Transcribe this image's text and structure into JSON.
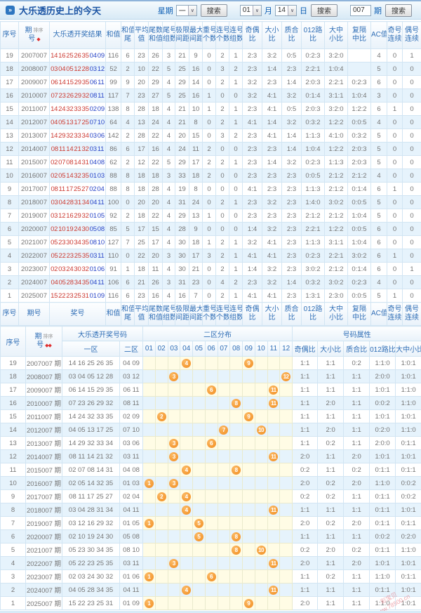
{
  "icons": {
    "bullet": "»",
    "caret": "∨",
    "sort_single": "◆",
    "sort_double": "◆◆"
  },
  "toolbar": {
    "title": "大乐透历史上的今天",
    "week_label": "星期",
    "week_value": "一",
    "search_label": "搜索",
    "month_value": "01",
    "month_label": "月",
    "day_value": "14",
    "day_label": "日",
    "issue_value": "007",
    "issue_label": "期"
  },
  "watermark": {
    "line1": "彩宝贝",
    "line2": "www.78500.cn"
  },
  "stats_table": {
    "sort_label": "排序",
    "columns": [
      {
        "l1": "序号",
        "l2": ""
      },
      {
        "l1": "期",
        "l2": "号",
        "sort": true
      },
      {
        "l1": "大乐透开奖结果",
        "l2": ""
      },
      {
        "l1": "和值",
        "l2": ""
      },
      {
        "l1": "和值",
        "l2": "尾"
      },
      {
        "l1": "平均",
        "l2": "值"
      },
      {
        "l1": "尾数",
        "l2": "和值"
      },
      {
        "l1": "尾号",
        "l2": "组数"
      },
      {
        "l1": "极限",
        "l2": "间距"
      },
      {
        "l1": "最大",
        "l2": "间距"
      },
      {
        "l1": "重号",
        "l2": "个数"
      },
      {
        "l1": "连号",
        "l2": "个数"
      },
      {
        "l1": "连号",
        "l2": "组数"
      },
      {
        "l1": "奇偶",
        "l2": "比"
      },
      {
        "l1": "大小",
        "l2": "比"
      },
      {
        "l1": "质合",
        "l2": "比"
      },
      {
        "l1": "012路",
        "l2": "比"
      },
      {
        "l1": "大中",
        "l2": "小比"
      },
      {
        "l1": "复隔",
        "l2": "中比"
      },
      {
        "l1": "AC值",
        "l2": ""
      },
      {
        "l1": "奇号",
        "l2": "连续"
      },
      {
        "l1": "偶号",
        "l2": "连续"
      }
    ],
    "footer_columns": [
      {
        "l1": "序号",
        "l2": ""
      },
      {
        "l1": "期号",
        "l2": ""
      },
      {
        "l1": "奖号",
        "l2": ""
      },
      {
        "l1": "和值",
        "l2": ""
      },
      {
        "l1": "和值",
        "l2": "尾"
      },
      {
        "l1": "平均",
        "l2": "值"
      },
      {
        "l1": "尾数",
        "l2": "和值"
      },
      {
        "l1": "尾号",
        "l2": "组数"
      },
      {
        "l1": "极限",
        "l2": "间距"
      },
      {
        "l1": "最大",
        "l2": "间距"
      },
      {
        "l1": "重号",
        "l2": "个数"
      },
      {
        "l1": "连号",
        "l2": "个数"
      },
      {
        "l1": "连号",
        "l2": "组数"
      },
      {
        "l1": "奇偶",
        "l2": "比"
      },
      {
        "l1": "大小",
        "l2": "比"
      },
      {
        "l1": "质合",
        "l2": "比"
      },
      {
        "l1": "012路",
        "l2": "比"
      },
      {
        "l1": "大中",
        "l2": "小比"
      },
      {
        "l1": "复隔",
        "l2": "中比"
      },
      {
        "l1": "AC值",
        "l2": ""
      },
      {
        "l1": "奇号",
        "l2": "连续"
      },
      {
        "l1": "偶号",
        "l2": "连续"
      }
    ],
    "rows": [
      {
        "seq": "19",
        "issue": "2007007",
        "front": "14 16 25 26 35",
        "back": "04 09",
        "stats": [
          "116",
          "6",
          "23",
          "26",
          "3",
          "21",
          "9",
          "0",
          "2",
          "1",
          "2:3",
          "3:2",
          "0:5",
          "0:2:3",
          "3:2:0",
          "",
          "4",
          "0",
          "1"
        ]
      },
      {
        "seq": "18",
        "issue": "2008007",
        "front": "03 04 05 12 28",
        "back": "03 12",
        "stats": [
          "52",
          "2",
          "10",
          "22",
          "5",
          "25",
          "16",
          "0",
          "3",
          "2",
          "2:3",
          "1:4",
          "2:3",
          "2:2:1",
          "1:0:4",
          "",
          "5",
          "0",
          "0"
        ]
      },
      {
        "seq": "17",
        "issue": "2009007",
        "front": "06 14 15 29 35",
        "back": "06 11",
        "stats": [
          "99",
          "9",
          "20",
          "29",
          "4",
          "29",
          "14",
          "0",
          "2",
          "1",
          "3:2",
          "2:3",
          "1:4",
          "2:0:3",
          "2:2:1",
          "0:2:3",
          "6",
          "0",
          "0"
        ]
      },
      {
        "seq": "16",
        "issue": "2010007",
        "front": "07 23 26 29 32",
        "back": "08 11",
        "stats": [
          "117",
          "7",
          "23",
          "27",
          "5",
          "25",
          "16",
          "1",
          "0",
          "0",
          "3:2",
          "4:1",
          "3:2",
          "0:1:4",
          "3:1:1",
          "1:0:4",
          "3",
          "0",
          "0"
        ]
      },
      {
        "seq": "15",
        "issue": "2011007",
        "front": "14 24 32 33 35",
        "back": "02 09",
        "stats": [
          "138",
          "8",
          "28",
          "18",
          "4",
          "21",
          "10",
          "1",
          "2",
          "1",
          "2:3",
          "4:1",
          "0:5",
          "2:0:3",
          "3:2:0",
          "1:2:2",
          "6",
          "1",
          "0"
        ]
      },
      {
        "seq": "14",
        "issue": "2012007",
        "front": "04 05 13 17 25",
        "back": "07 10",
        "stats": [
          "64",
          "4",
          "13",
          "24",
          "4",
          "21",
          "8",
          "0",
          "2",
          "1",
          "4:1",
          "1:4",
          "3:2",
          "0:3:2",
          "1:2:2",
          "0:0:5",
          "4",
          "0",
          "0"
        ]
      },
      {
        "seq": "13",
        "issue": "2013007",
        "front": "14 29 32 33 34",
        "back": "03 06",
        "stats": [
          "142",
          "2",
          "28",
          "22",
          "4",
          "20",
          "15",
          "0",
          "3",
          "2",
          "2:3",
          "4:1",
          "1:4",
          "1:1:3",
          "4:1:0",
          "0:3:2",
          "5",
          "0",
          "0"
        ]
      },
      {
        "seq": "12",
        "issue": "2014007",
        "front": "08 11 14 21 32",
        "back": "03 11",
        "stats": [
          "86",
          "6",
          "17",
          "16",
          "4",
          "24",
          "11",
          "2",
          "0",
          "0",
          "2:3",
          "2:3",
          "1:4",
          "1:0:4",
          "1:2:2",
          "2:0:3",
          "5",
          "0",
          "0"
        ]
      },
      {
        "seq": "11",
        "issue": "2015007",
        "front": "02 07 08 14 31",
        "back": "04 08",
        "stats": [
          "62",
          "2",
          "12",
          "22",
          "5",
          "29",
          "17",
          "2",
          "2",
          "1",
          "2:3",
          "1:4",
          "3:2",
          "0:2:3",
          "1:1:3",
          "2:0:3",
          "5",
          "0",
          "0"
        ]
      },
      {
        "seq": "10",
        "issue": "2016007",
        "front": "02 05 14 32 35",
        "back": "01 03",
        "stats": [
          "88",
          "8",
          "18",
          "18",
          "3",
          "33",
          "18",
          "2",
          "0",
          "0",
          "2:3",
          "2:3",
          "2:3",
          "0:0:5",
          "2:1:2",
          "2:1:2",
          "4",
          "0",
          "0"
        ]
      },
      {
        "seq": "9",
        "issue": "2017007",
        "front": "08 11 17 25 27",
        "back": "02 04",
        "stats": [
          "88",
          "8",
          "18",
          "28",
          "4",
          "19",
          "8",
          "0",
          "0",
          "0",
          "4:1",
          "2:3",
          "2:3",
          "1:1:3",
          "2:1:2",
          "0:1:4",
          "6",
          "1",
          "0"
        ]
      },
      {
        "seq": "8",
        "issue": "2018007",
        "front": "03 04 28 31 34",
        "back": "04 11",
        "stats": [
          "100",
          "0",
          "20",
          "20",
          "4",
          "31",
          "24",
          "0",
          "2",
          "1",
          "2:3",
          "3:2",
          "2:3",
          "1:4:0",
          "3:0:2",
          "0:0:5",
          "5",
          "0",
          "0"
        ]
      },
      {
        "seq": "7",
        "issue": "2019007",
        "front": "03 12 16 29 32",
        "back": "01 05",
        "stats": [
          "92",
          "2",
          "18",
          "22",
          "4",
          "29",
          "13",
          "1",
          "0",
          "0",
          "2:3",
          "2:3",
          "2:3",
          "2:1:2",
          "2:1:2",
          "1:0:4",
          "5",
          "0",
          "0"
        ]
      },
      {
        "seq": "6",
        "issue": "2020007",
        "front": "02 10 19 24 30",
        "back": "05 08",
        "stats": [
          "85",
          "5",
          "17",
          "15",
          "4",
          "28",
          "9",
          "0",
          "0",
          "0",
          "1:4",
          "3:2",
          "2:3",
          "2:2:1",
          "1:2:2",
          "0:0:5",
          "6",
          "0",
          "0"
        ]
      },
      {
        "seq": "5",
        "issue": "2021007",
        "front": "05 23 30 34 35",
        "back": "08 10",
        "stats": [
          "127",
          "7",
          "25",
          "17",
          "4",
          "30",
          "18",
          "1",
          "2",
          "1",
          "3:2",
          "4:1",
          "2:3",
          "1:1:3",
          "3:1:1",
          "1:0:4",
          "6",
          "0",
          "0"
        ]
      },
      {
        "seq": "4",
        "issue": "2022007",
        "front": "05 22 23 25 35",
        "back": "03 11",
        "stats": [
          "110",
          "0",
          "22",
          "20",
          "3",
          "30",
          "17",
          "3",
          "2",
          "1",
          "4:1",
          "4:1",
          "2:3",
          "0:2:3",
          "2:2:1",
          "3:0:2",
          "6",
          "1",
          "0"
        ]
      },
      {
        "seq": "3",
        "issue": "2023007",
        "front": "02 03 24 30 32",
        "back": "01 06",
        "stats": [
          "91",
          "1",
          "18",
          "11",
          "4",
          "30",
          "21",
          "0",
          "2",
          "1",
          "1:4",
          "3:2",
          "2:3",
          "3:0:2",
          "2:1:2",
          "0:1:4",
          "6",
          "0",
          "1"
        ]
      },
      {
        "seq": "2",
        "issue": "2024007",
        "front": "04 05 28 34 35",
        "back": "04 11",
        "stats": [
          "106",
          "6",
          "21",
          "26",
          "3",
          "31",
          "23",
          "0",
          "4",
          "2",
          "2:3",
          "3:2",
          "1:4",
          "0:3:2",
          "3:0:2",
          "0:2:3",
          "4",
          "0",
          "0"
        ]
      },
      {
        "seq": "1",
        "issue": "2025007",
        "front": "15 22 23 25 31",
        "back": "01 09",
        "stats": [
          "116",
          "6",
          "23",
          "16",
          "4",
          "16",
          "7",
          "0",
          "2",
          "1",
          "4:1",
          "4:1",
          "2:3",
          "1:3:1",
          "2:3:0",
          "0:0:5",
          "5",
          "1",
          "0"
        ]
      }
    ]
  },
  "zone_table": {
    "sort_label": "排序",
    "group_headers": {
      "seq": "序号",
      "issue_l1": "期",
      "issue_l2": "号",
      "numbers": "大乐透开奖号码",
      "zone2_dist": "二区分布",
      "attrs": "号码属性"
    },
    "sub_headers": {
      "zone1": "一区",
      "zone2": "二区",
      "cells": [
        "01",
        "02",
        "03",
        "04",
        "05",
        "06",
        "07",
        "08",
        "09",
        "10",
        "11",
        "12"
      ],
      "attrs": [
        "奇偶比",
        "大小比",
        "质合比",
        "012路比",
        "大中小比"
      ]
    },
    "rows": [
      {
        "seq": "19",
        "issue": "2007007 期",
        "front": "14 16 25 26 35",
        "back": "04 09",
        "balls": [
          4,
          9
        ],
        "attrs": [
          "1:1",
          "1:1",
          "0:2",
          "1:1:0",
          "1:0:1"
        ]
      },
      {
        "seq": "18",
        "issue": "2008007 期",
        "front": "03 04 05 12 28",
        "back": "03 12",
        "balls": [
          3,
          12
        ],
        "attrs": [
          "1:1",
          "1:1",
          "1:1",
          "2:0:0",
          "1:0:1"
        ]
      },
      {
        "seq": "17",
        "issue": "2009007 期",
        "front": "06 14 15 29 35",
        "back": "06 11",
        "balls": [
          6,
          11
        ],
        "attrs": [
          "1:1",
          "1:1",
          "1:1",
          "1:0:1",
          "1:1:0"
        ]
      },
      {
        "seq": "16",
        "issue": "2010007 期",
        "front": "07 23 26 29 32",
        "back": "08 11",
        "balls": [
          8,
          11
        ],
        "attrs": [
          "1:1",
          "2:0",
          "1:1",
          "0:0:2",
          "1:1:0"
        ]
      },
      {
        "seq": "15",
        "issue": "2011007 期",
        "front": "14 24 32 33 35",
        "back": "02 09",
        "balls": [
          2,
          9
        ],
        "attrs": [
          "1:1",
          "1:1",
          "1:1",
          "1:0:1",
          "1:0:1"
        ]
      },
      {
        "seq": "14",
        "issue": "2012007 期",
        "front": "04 05 13 17 25",
        "back": "07 10",
        "balls": [
          7,
          10
        ],
        "attrs": [
          "1:1",
          "2:0",
          "1:1",
          "0:2:0",
          "1:1:0"
        ]
      },
      {
        "seq": "13",
        "issue": "2013007 期",
        "front": "14 29 32 33 34",
        "back": "03 06",
        "balls": [
          3,
          6
        ],
        "attrs": [
          "1:1",
          "0:2",
          "1:1",
          "2:0:0",
          "0:1:1"
        ]
      },
      {
        "seq": "12",
        "issue": "2014007 期",
        "front": "08 11 14 21 32",
        "back": "03 11",
        "balls": [
          3,
          11
        ],
        "attrs": [
          "2:0",
          "1:1",
          "2:0",
          "1:0:1",
          "1:0:1"
        ]
      },
      {
        "seq": "11",
        "issue": "2015007 期",
        "front": "02 07 08 14 31",
        "back": "04 08",
        "balls": [
          4,
          8
        ],
        "attrs": [
          "0:2",
          "1:1",
          "0:2",
          "0:1:1",
          "0:1:1"
        ]
      },
      {
        "seq": "10",
        "issue": "2016007 期",
        "front": "02 05 14 32 35",
        "back": "01 03",
        "balls": [
          1,
          3
        ],
        "attrs": [
          "2:0",
          "0:2",
          "2:0",
          "1:1:0",
          "0:0:2"
        ]
      },
      {
        "seq": "9",
        "issue": "2017007 期",
        "front": "08 11 17 25 27",
        "back": "02 04",
        "balls": [
          2,
          4
        ],
        "attrs": [
          "0:2",
          "0:2",
          "1:1",
          "0:1:1",
          "0:0:2"
        ]
      },
      {
        "seq": "8",
        "issue": "2018007 期",
        "front": "03 04 28 31 34",
        "back": "04 11",
        "balls": [
          4,
          11
        ],
        "attrs": [
          "1:1",
          "1:1",
          "1:1",
          "0:1:1",
          "1:0:1"
        ]
      },
      {
        "seq": "7",
        "issue": "2019007 期",
        "front": "03 12 16 29 32",
        "back": "01 05",
        "balls": [
          1,
          5
        ],
        "attrs": [
          "2:0",
          "0:2",
          "2:0",
          "0:1:1",
          "0:1:1"
        ]
      },
      {
        "seq": "6",
        "issue": "2020007 期",
        "front": "02 10 19 24 30",
        "back": "05 08",
        "balls": [
          5,
          8
        ],
        "attrs": [
          "1:1",
          "1:1",
          "1:1",
          "0:0:2",
          "0:2:0"
        ]
      },
      {
        "seq": "5",
        "issue": "2021007 期",
        "front": "05 23 30 34 35",
        "back": "08 10",
        "balls": [
          8,
          10
        ],
        "attrs": [
          "0:2",
          "2:0",
          "0:2",
          "0:1:1",
          "1:1:0"
        ]
      },
      {
        "seq": "4",
        "issue": "2022007 期",
        "front": "05 22 23 25 35",
        "back": "03 11",
        "balls": [
          3,
          11
        ],
        "attrs": [
          "2:0",
          "1:1",
          "2:0",
          "1:0:1",
          "1:0:1"
        ]
      },
      {
        "seq": "3",
        "issue": "2023007 期",
        "front": "02 03 24 30 32",
        "back": "01 06",
        "balls": [
          1,
          6
        ],
        "attrs": [
          "1:1",
          "0:2",
          "1:1",
          "1:1:0",
          "0:1:1"
        ]
      },
      {
        "seq": "2",
        "issue": "2024007 期",
        "front": "04 05 28 34 35",
        "back": "04 11",
        "balls": [
          4,
          11
        ],
        "attrs": [
          "1:1",
          "1:1",
          "1:1",
          "0:1:1",
          "1:0:1"
        ]
      },
      {
        "seq": "1",
        "issue": "2025007 期",
        "front": "15 22 23 25 31",
        "back": "01 09",
        "balls": [
          1,
          9
        ],
        "attrs": [
          "2:0",
          "1:1",
          "1:1",
          "1:1:0",
          "1:0:1"
        ]
      }
    ]
  }
}
